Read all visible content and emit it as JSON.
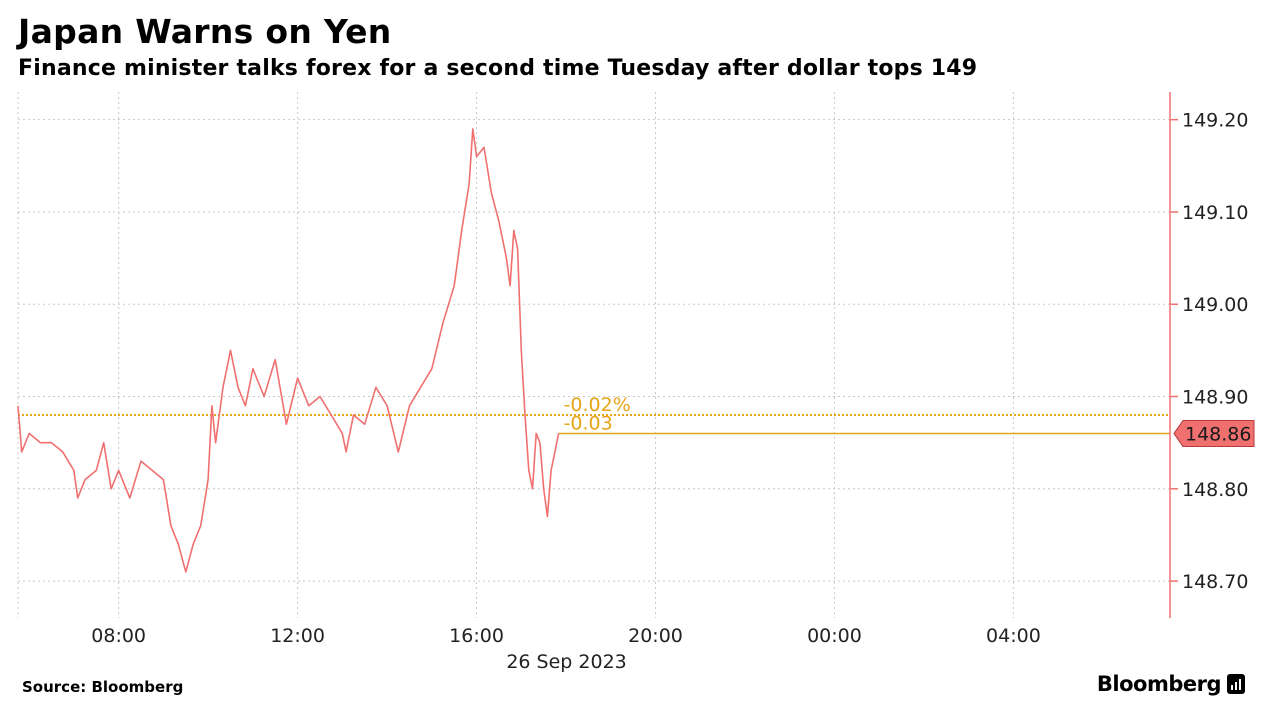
{
  "header": {
    "title": "Japan Warns on Yen",
    "subtitle": "Finance minister talks forex for a second time Tuesday after dollar tops 149"
  },
  "footer": {
    "source": "Source: Bloomberg",
    "brand": "Bloomberg"
  },
  "colors": {
    "line": "#f07070",
    "axis": "#f07070",
    "reference": "#e6a417",
    "grid": "#c8c8c8",
    "last_price_bg": "#f07070"
  },
  "chart_data": {
    "type": "line",
    "title": "Japan Warns on Yen",
    "subtitle": "Finance minister talks forex for a second time Tuesday after dollar tops 149",
    "date_label": "26 Sep 2023",
    "x_range": [
      "05:45",
      "07:30 (+1 day)"
    ],
    "x_tick_labels": [
      "08:00",
      "12:00",
      "16:00",
      "20:00",
      "00:00",
      "04:00"
    ],
    "x_tick_positions_hours": [
      8,
      12,
      16,
      20,
      24,
      28
    ],
    "y_range": [
      148.66,
      149.23
    ],
    "y_tick_labels": [
      "148.70",
      "148.80",
      "148.90",
      "149.00",
      "149.10",
      "149.20"
    ],
    "y_ticks": [
      148.7,
      148.8,
      148.9,
      149.0,
      149.1,
      149.2
    ],
    "grid": true,
    "y_axis_side": "right",
    "reference_level": 148.88,
    "change_pct_label": "-0.02%",
    "change_abs_label": "-0.03",
    "last_value_label": "148.86",
    "last_value": 148.86,
    "series": [
      {
        "points": [
          [
            "05:45",
            148.89
          ],
          [
            "05:50",
            148.84
          ],
          [
            "06:00",
            148.86
          ],
          [
            "06:15",
            148.85
          ],
          [
            "06:30",
            148.85
          ],
          [
            "06:45",
            148.84
          ],
          [
            "07:00",
            148.82
          ],
          [
            "07:05",
            148.79
          ],
          [
            "07:15",
            148.81
          ],
          [
            "07:30",
            148.82
          ],
          [
            "07:40",
            148.85
          ],
          [
            "07:50",
            148.8
          ],
          [
            "08:00",
            148.82
          ],
          [
            "08:15",
            148.79
          ],
          [
            "08:30",
            148.83
          ],
          [
            "08:45",
            148.82
          ],
          [
            "09:00",
            148.81
          ],
          [
            "09:10",
            148.76
          ],
          [
            "09:20",
            148.74
          ],
          [
            "09:30",
            148.71
          ],
          [
            "09:40",
            148.74
          ],
          [
            "09:50",
            148.76
          ],
          [
            "10:00",
            148.81
          ],
          [
            "10:05",
            148.89
          ],
          [
            "10:10",
            148.85
          ],
          [
            "10:20",
            148.91
          ],
          [
            "10:30",
            148.95
          ],
          [
            "10:40",
            148.91
          ],
          [
            "10:50",
            148.89
          ],
          [
            "11:00",
            148.93
          ],
          [
            "11:15",
            148.9
          ],
          [
            "11:30",
            148.94
          ],
          [
            "11:45",
            148.87
          ],
          [
            "12:00",
            148.92
          ],
          [
            "12:15",
            148.89
          ],
          [
            "12:30",
            148.9
          ],
          [
            "12:45",
            148.88
          ],
          [
            "13:00",
            148.86
          ],
          [
            "13:05",
            148.84
          ],
          [
            "13:15",
            148.88
          ],
          [
            "13:30",
            148.87
          ],
          [
            "13:45",
            148.91
          ],
          [
            "14:00",
            148.89
          ],
          [
            "14:15",
            148.84
          ],
          [
            "14:30",
            148.89
          ],
          [
            "14:45",
            148.91
          ],
          [
            "15:00",
            148.93
          ],
          [
            "15:15",
            148.98
          ],
          [
            "15:30",
            149.02
          ],
          [
            "15:40",
            149.08
          ],
          [
            "15:50",
            149.13
          ],
          [
            "15:55",
            149.19
          ],
          [
            "16:00",
            149.16
          ],
          [
            "16:10",
            149.17
          ],
          [
            "16:20",
            149.12
          ],
          [
            "16:30",
            149.09
          ],
          [
            "16:40",
            149.05
          ],
          [
            "16:45",
            149.02
          ],
          [
            "16:50",
            149.08
          ],
          [
            "16:55",
            149.06
          ],
          [
            "17:00",
            148.95
          ],
          [
            "17:05",
            148.88
          ],
          [
            "17:10",
            148.82
          ],
          [
            "17:15",
            148.8
          ],
          [
            "17:20",
            148.86
          ],
          [
            "17:25",
            148.85
          ],
          [
            "17:30",
            148.8
          ],
          [
            "17:35",
            148.77
          ],
          [
            "17:40",
            148.82
          ],
          [
            "17:45",
            148.84
          ],
          [
            "17:50",
            148.86
          ]
        ]
      }
    ]
  }
}
